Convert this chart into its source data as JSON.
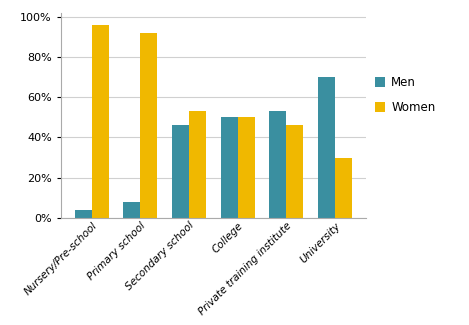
{
  "categories": [
    "Nursery/Pre-school",
    "Primary school",
    "Secondary school",
    "College",
    "Private training institute",
    "University"
  ],
  "men_values": [
    4,
    8,
    46,
    50,
    53,
    70
  ],
  "women_values": [
    96,
    92,
    53,
    50,
    46,
    30
  ],
  "men_color": "#3a8fa0",
  "women_color": "#f0b800",
  "ylim": [
    0,
    100
  ],
  "yticks": [
    0,
    20,
    40,
    60,
    80,
    100
  ],
  "legend_labels": [
    "Men",
    "Women"
  ],
  "bar_width": 0.35,
  "figsize": [
    4.69,
    3.25
  ],
  "dpi": 100
}
